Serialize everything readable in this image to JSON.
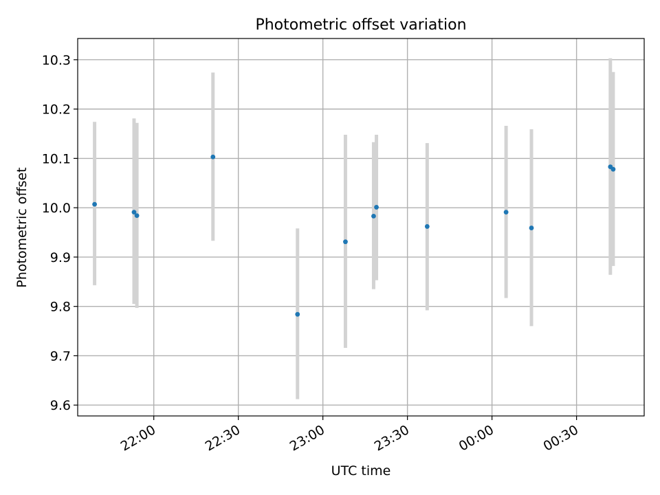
{
  "chart_data": {
    "type": "scatter",
    "title": "Photometric offset variation",
    "xlabel": "UTC time",
    "ylabel": "Photometric offset",
    "x_axis_kind": "time",
    "x_range": [
      "21:33",
      "00:54"
    ],
    "ylim": [
      9.578,
      10.343
    ],
    "grid": true,
    "x_ticks": [
      "22:00",
      "22:30",
      "23:00",
      "23:30",
      "00:00",
      "00:30"
    ],
    "y_ticks": [
      "9.6",
      "9.7",
      "9.8",
      "9.9",
      "10.0",
      "10.1",
      "10.2",
      "10.3"
    ],
    "series": [
      {
        "points": [
          {
            "x": "21:39",
            "y": 10.007,
            "err_low": 9.843,
            "err_high": 10.174
          },
          {
            "x": "21:53",
            "y": 9.991,
            "err_low": 9.805,
            "err_high": 10.181
          },
          {
            "x": "21:54",
            "y": 9.984,
            "err_low": 9.797,
            "err_high": 10.172
          },
          {
            "x": "22:21",
            "y": 10.103,
            "err_low": 9.933,
            "err_high": 10.274
          },
          {
            "x": "22:51",
            "y": 9.784,
            "err_low": 9.612,
            "err_high": 9.958
          },
          {
            "x": "23:08",
            "y": 9.931,
            "err_low": 9.716,
            "err_high": 10.148
          },
          {
            "x": "23:18",
            "y": 9.983,
            "err_low": 9.835,
            "err_high": 10.133
          },
          {
            "x": "23:19",
            "y": 10.001,
            "err_low": 9.853,
            "err_high": 10.148
          },
          {
            "x": "23:37",
            "y": 9.962,
            "err_low": 9.792,
            "err_high": 10.131
          },
          {
            "x": "00:05",
            "y": 9.991,
            "err_low": 9.817,
            "err_high": 10.166
          },
          {
            "x": "00:14",
            "y": 9.959,
            "err_low": 9.76,
            "err_high": 10.159
          },
          {
            "x": "00:42",
            "y": 10.083,
            "err_low": 9.864,
            "err_high": 10.303
          },
          {
            "x": "00:43",
            "y": 10.078,
            "err_low": 9.882,
            "err_high": 10.275
          }
        ]
      }
    ],
    "colors": {
      "marker": "#1f77b4",
      "errorbar": "#d3d3d3",
      "grid": "#b0b0b0",
      "axes": "#000000"
    }
  }
}
